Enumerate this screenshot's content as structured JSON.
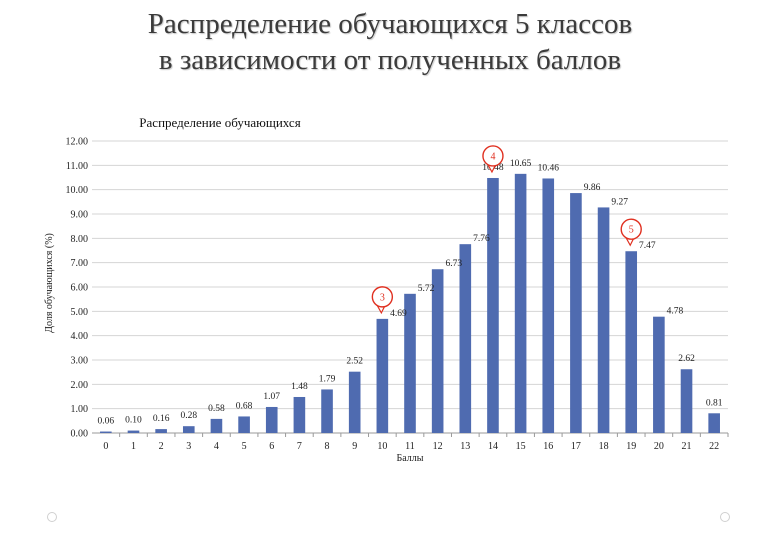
{
  "slide": {
    "title_line1": "Распределение обучающихся 5 классов",
    "title_line2": "в зависимости от полученных баллов"
  },
  "chart_data": {
    "type": "bar",
    "title": "Распределение обучающихся",
    "xlabel": "Баллы",
    "ylabel": "Доля обучающихся (%)",
    "ylim": [
      0,
      12
    ],
    "yticks": [
      "0.00",
      "1.00",
      "2.00",
      "3.00",
      "4.00",
      "5.00",
      "6.00",
      "7.00",
      "8.00",
      "9.00",
      "10.00",
      "11.00",
      "12.00"
    ],
    "categories": [
      "0",
      "1",
      "2",
      "3",
      "4",
      "5",
      "6",
      "7",
      "8",
      "9",
      "10",
      "11",
      "12",
      "13",
      "14",
      "15",
      "16",
      "17",
      "18",
      "19",
      "20",
      "21",
      "22"
    ],
    "values": [
      0.06,
      0.1,
      0.16,
      0.28,
      0.58,
      0.68,
      1.07,
      1.48,
      1.79,
      2.52,
      4.69,
      5.72,
      6.73,
      7.76,
      10.48,
      10.65,
      10.46,
      9.86,
      9.27,
      7.47,
      4.78,
      2.62,
      0.81
    ],
    "data_labels": [
      "0.06",
      "0.10",
      "0.16",
      "0.28",
      "0.58",
      "0.68",
      "1.07",
      "1.48",
      "1.79",
      "2.52",
      "4.69",
      "5.72",
      "6.73",
      "7.76",
      "10.48",
      "10.65",
      "10.46",
      "9.86",
      "9.27",
      "7.47",
      "4.78",
      "2.62",
      "0.81"
    ],
    "bar_color": "#4f6bb0",
    "grid": true,
    "grade_markers": [
      {
        "label": "3",
        "category": "10"
      },
      {
        "label": "4",
        "category": "14"
      },
      {
        "label": "5",
        "category": "19"
      }
    ],
    "marker_color": "#e03020"
  }
}
